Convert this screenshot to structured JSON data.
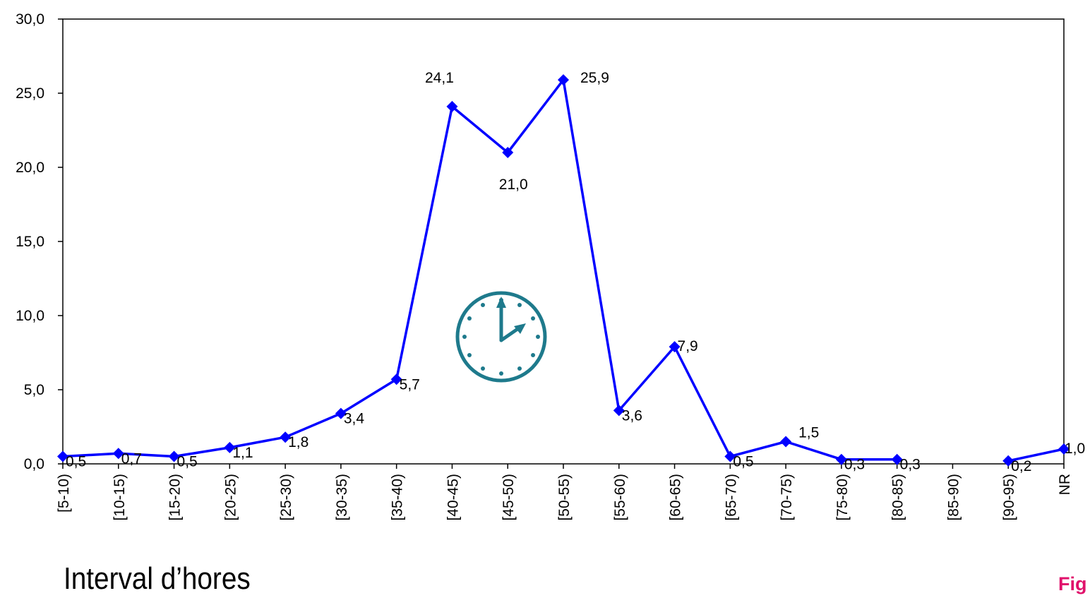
{
  "chart_data": {
    "type": "line",
    "categories": [
      "[5-10)",
      "[10-15)",
      "[15-20)",
      "[20-25)",
      "[25-30)",
      "[30-35)",
      "[35-40)",
      "[40-45)",
      "[45-50)",
      "[50-55)",
      "[55-60)",
      "[60-65)",
      "[65-70)",
      "[70-75)",
      "[75-80)",
      "[80-85)",
      "[85-90)",
      "[90-95)",
      "NR"
    ],
    "values": [
      0.5,
      0.7,
      0.5,
      1.1,
      1.8,
      3.4,
      5.7,
      24.1,
      21.0,
      25.9,
      3.6,
      7.9,
      0.5,
      1.5,
      0.3,
      0.3,
      null,
      0.2,
      1.0
    ],
    "data_labels": [
      "0,5",
      "0,7",
      "0,5",
      "1,1",
      "1,8",
      "3,4",
      "5,7",
      "24,1",
      "21,0",
      "25,9",
      "3,6",
      "7,9",
      "0,5",
      "1,5",
      "0,3",
      "0,3",
      "",
      "0,2",
      "1,0"
    ],
    "yticks": [
      "0,0",
      "5,0",
      "10,0",
      "15,0",
      "20,0",
      "25,0",
      "30,0"
    ],
    "ylim": [
      0,
      30
    ],
    "xlabel": "Interval d’hores",
    "grid": false,
    "legend": "none",
    "series_color": "#0000ff",
    "icon": "clock-icon",
    "icon_color": "#1e7a8c"
  },
  "fig_label": "Fig"
}
